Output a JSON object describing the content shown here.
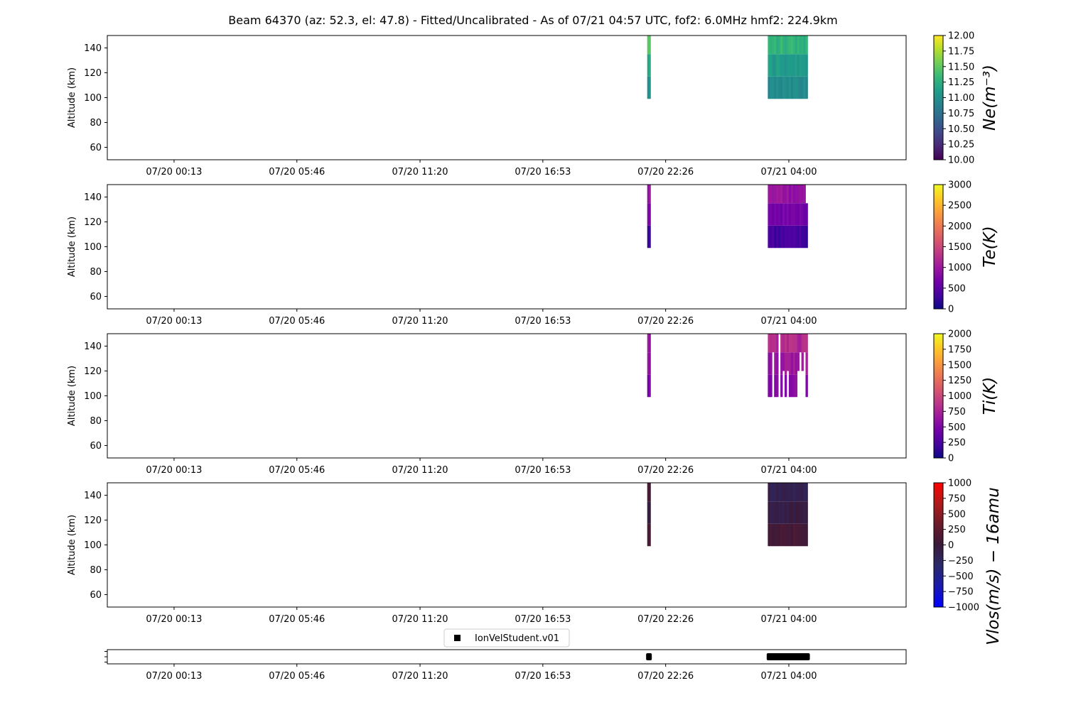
{
  "title": "Beam 64370 (az: 52.3, el: 47.8) - Fitted/Uncalibrated - As of 07/21 04:57 UTC, fof2: 6.0MHz  hmf2: 224.9km",
  "chart_data": {
    "type": "heatmap",
    "x_tick_labels": [
      "07/20 00:13",
      "07/20 05:46",
      "07/20 11:20",
      "07/20 16:53",
      "07/20 22:26",
      "07/21 04:00"
    ],
    "x_tick_hours": [
      0.217,
      5.767,
      11.333,
      16.883,
      22.433,
      28.0
    ],
    "xlim_hours": [
      -2.8,
      33.3
    ],
    "grid": false,
    "panels": [
      {
        "id": "ne",
        "ylabel": "Altitude (km)",
        "ylim": [
          50,
          150
        ],
        "yticks": [
          60,
          80,
          100,
          120,
          140
        ],
        "colorbar_label": "Ne(m⁻³)",
        "colormap": "viridis",
        "clim": [
          10.0,
          12.0
        ],
        "cbar_ticks": [
          10.0,
          10.25,
          10.5,
          10.75,
          11.0,
          11.25,
          11.5,
          11.75,
          12.0
        ],
        "cbar_tick_labels": [
          "10.00",
          "10.25",
          "10.50",
          "10.75",
          "11.00",
          "11.25",
          "11.50",
          "11.75",
          "12.00"
        ],
        "data_blocks": [
          {
            "t_start": 21.6,
            "t_end": 21.75,
            "alt_min": 99,
            "alt_max": 150,
            "values": [
              10.95,
              11.2,
              11.45
            ],
            "gaps": false
          },
          {
            "t_start": 27.05,
            "t_end": 28.85,
            "alt_min": 99,
            "alt_max": 150,
            "values": [
              10.95,
              11.1,
              11.3
            ],
            "gaps": false
          }
        ]
      },
      {
        "id": "te",
        "ylabel": "Altitude (km)",
        "ylim": [
          50,
          150
        ],
        "yticks": [
          60,
          80,
          100,
          120,
          140
        ],
        "colorbar_label": "Te(K)",
        "colormap": "plasma",
        "clim": [
          0,
          3000
        ],
        "cbar_ticks": [
          0,
          500,
          1000,
          1500,
          2000,
          2500,
          3000
        ],
        "cbar_tick_labels": [
          "0",
          "500",
          "1000",
          "1500",
          "2000",
          "2500",
          "3000"
        ],
        "data_blocks": [
          {
            "t_start": 21.6,
            "t_end": 21.75,
            "alt_min": 99,
            "alt_max": 150,
            "values": [
              350,
              800,
              950
            ],
            "gaps": false
          },
          {
            "t_start": 27.05,
            "t_end": 28.85,
            "alt_min": 99,
            "alt_max": 150,
            "values": [
              320,
              700,
              950
            ],
            "gaps": true
          }
        ]
      },
      {
        "id": "ti",
        "ylabel": "Altitude (km)",
        "ylim": [
          50,
          150
        ],
        "yticks": [
          60,
          80,
          100,
          120,
          140
        ],
        "colorbar_label": "Ti(K)",
        "colormap": "plasma",
        "clim": [
          0,
          2000
        ],
        "cbar_ticks": [
          0,
          250,
          500,
          750,
          1000,
          1250,
          1500,
          1750,
          2000
        ],
        "cbar_tick_labels": [
          "0",
          "250",
          "500",
          "750",
          "1000",
          "1250",
          "1500",
          "1750",
          "2000"
        ],
        "data_blocks": [
          {
            "t_start": 21.6,
            "t_end": 21.75,
            "alt_min": 99,
            "alt_max": 150,
            "values": [
              500,
              600,
              650
            ],
            "gaps": false
          },
          {
            "t_start": 27.05,
            "t_end": 28.85,
            "alt_min": 99,
            "alt_max": 150,
            "values": [
              550,
              650,
              800
            ],
            "gaps": true
          }
        ]
      },
      {
        "id": "vlos",
        "ylabel": "Altitude (km)",
        "ylim": [
          50,
          150
        ],
        "yticks": [
          60,
          80,
          100,
          120,
          140
        ],
        "colorbar_label": "Vlos(m/s) − 16amu",
        "colormap": "bwr",
        "clim": [
          -1000,
          1000
        ],
        "cbar_ticks": [
          -1000,
          -750,
          -500,
          -250,
          0,
          250,
          500,
          750,
          1000
        ],
        "cbar_tick_labels": [
          "−1000",
          "−750",
          "−500",
          "−250",
          "0",
          "250",
          "500",
          "750",
          "1000"
        ],
        "data_blocks": [
          {
            "t_start": 21.6,
            "t_end": 21.75,
            "alt_min": 99,
            "alt_max": 150,
            "values": [
              100,
              -50,
              50
            ],
            "gaps": false
          },
          {
            "t_start": 27.05,
            "t_end": 28.85,
            "alt_min": 99,
            "alt_max": 150,
            "values": [
              80,
              -80,
              -150
            ],
            "gaps": false
          }
        ]
      }
    ],
    "legend": {
      "label": "IonVelStudent.v01",
      "marker": "square",
      "color": "#000000",
      "placement": "upper center"
    },
    "marker_series": {
      "name": "IonVelStudent.v01",
      "segments": [
        {
          "t_start": 21.55,
          "t_end": 21.8
        },
        {
          "t_start": 27.0,
          "t_end": 28.95
        }
      ]
    }
  }
}
